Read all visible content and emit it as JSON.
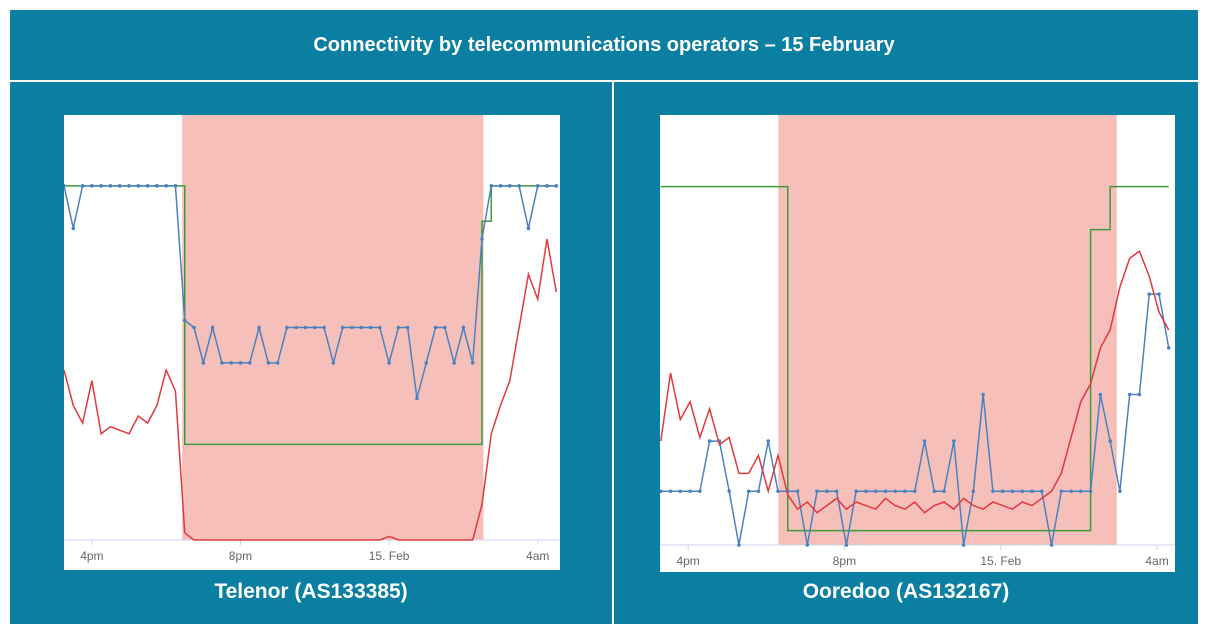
{
  "title": "Connectivity by telecommunications operators – 15 February",
  "chart_data": [
    {
      "type": "line",
      "title": "Telenor (AS133385)",
      "x": [
        15.25,
        15.5,
        15.75,
        16,
        16.25,
        16.5,
        16.75,
        17,
        17.25,
        17.5,
        17.75,
        18,
        18.25,
        18.5,
        18.75,
        19,
        19.25,
        19.5,
        19.75,
        20,
        20.25,
        20.5,
        20.75,
        21,
        21.25,
        21.5,
        21.75,
        22,
        22.25,
        22.5,
        22.75,
        23,
        23.25,
        23.5,
        23.75,
        24,
        24.25,
        24.5,
        24.75,
        25,
        25.25,
        25.5,
        25.75,
        26,
        26.25,
        26.5,
        26.75,
        27,
        27.25,
        27.5,
        27.75,
        28,
        28.25,
        28.5
      ],
      "xlim": [
        15.25,
        28.6
      ],
      "ylim": [
        0,
        120
      ],
      "xticks": [
        {
          "value": 16,
          "label": "4pm"
        },
        {
          "value": 20,
          "label": "8pm"
        },
        {
          "value": 24,
          "label": "15. Feb"
        },
        {
          "value": 28,
          "label": "4am"
        }
      ],
      "shade": [
        18.43,
        26.54
      ],
      "shade_color": "#f7bfba",
      "series": [
        {
          "color": "#3d9b3d",
          "step": true,
          "values": [
            100,
            100,
            100,
            100,
            100,
            100,
            100,
            100,
            100,
            100,
            100,
            100,
            100,
            27,
            27,
            27,
            27,
            27,
            27,
            27,
            27,
            27,
            27,
            27,
            27,
            27,
            27,
            27,
            27,
            27,
            27,
            27,
            27,
            27,
            27,
            27,
            27,
            27,
            27,
            27,
            27,
            27,
            27,
            27,
            27,
            90,
            100,
            100,
            100,
            100,
            100,
            100,
            100,
            100
          ]
        },
        {
          "color": "#4a82c0",
          "markers": true,
          "values": [
            100,
            88,
            100,
            100,
            100,
            100,
            100,
            100,
            100,
            100,
            100,
            100,
            100,
            62,
            60,
            50,
            60,
            50,
            50,
            50,
            50,
            60,
            50,
            50,
            60,
            60,
            60,
            60,
            60,
            50,
            60,
            60,
            60,
            60,
            60,
            50,
            60,
            60,
            40,
            50,
            60,
            60,
            50,
            60,
            50,
            85,
            100,
            100,
            100,
            100,
            88,
            100,
            100,
            100
          ]
        },
        {
          "color": "#e2393e",
          "values": [
            48,
            38,
            33,
            45,
            30,
            32,
            31,
            30,
            35,
            33,
            38,
            48,
            42,
            2,
            0,
            0,
            0,
            0,
            0,
            0,
            0,
            0,
            0,
            0,
            0,
            0,
            0,
            0,
            0,
            0,
            0,
            0,
            0,
            0,
            0,
            1,
            0,
            0,
            0,
            0,
            0,
            0,
            0,
            0,
            0,
            10,
            30,
            38,
            45,
            60,
            75,
            68,
            85,
            70
          ]
        }
      ]
    },
    {
      "type": "line",
      "title": "Ooredoo (AS132167)",
      "x": [
        15.3,
        15.55,
        15.8,
        16.05,
        16.3,
        16.55,
        16.8,
        17.05,
        17.3,
        17.55,
        17.8,
        18.05,
        18.3,
        18.55,
        18.8,
        19.05,
        19.3,
        19.55,
        19.8,
        20.05,
        20.3,
        20.55,
        20.8,
        21.05,
        21.3,
        21.55,
        21.8,
        22.05,
        22.3,
        22.55,
        22.8,
        23.05,
        23.3,
        23.55,
        23.8,
        24.05,
        24.3,
        24.55,
        24.8,
        25.05,
        25.3,
        25.55,
        25.8,
        26.05,
        26.3,
        26.55,
        26.8,
        27.05,
        27.3,
        27.55,
        27.8,
        28.05,
        28.3
      ],
      "xlim": [
        15.28,
        28.46
      ],
      "ylim": [
        0,
        120
      ],
      "xticks": [
        {
          "value": 16,
          "label": "4pm"
        },
        {
          "value": 20,
          "label": "8pm"
        },
        {
          "value": 24,
          "label": "15. Feb"
        },
        {
          "value": 28,
          "label": "4am"
        }
      ],
      "shade": [
        18.31,
        26.97
      ],
      "shade_color": "#f7bfba",
      "series": [
        {
          "color": "#3d9b3d",
          "step": true,
          "values": [
            100,
            100,
            100,
            100,
            100,
            100,
            100,
            100,
            100,
            100,
            100,
            100,
            100,
            4,
            4,
            4,
            4,
            4,
            4,
            4,
            4,
            4,
            4,
            4,
            4,
            4,
            4,
            4,
            4,
            4,
            4,
            4,
            4,
            4,
            4,
            4,
            4,
            4,
            4,
            4,
            4,
            4,
            4,
            4,
            88,
            88,
            100,
            100,
            100,
            100,
            100,
            100,
            100
          ]
        },
        {
          "color": "#4a82c0",
          "markers": true,
          "values": [
            15,
            15,
            15,
            15,
            15,
            29,
            29,
            15,
            0,
            15,
            15,
            29,
            15,
            15,
            15,
            0,
            15,
            15,
            15,
            0,
            15,
            15,
            15,
            15,
            15,
            15,
            15,
            29,
            15,
            15,
            29,
            0,
            15,
            42,
            15,
            15,
            15,
            15,
            15,
            15,
            0,
            15,
            15,
            15,
            15,
            42,
            29,
            15,
            42,
            42,
            70,
            70,
            55
          ]
        },
        {
          "color": "#e2393e",
          "values": [
            29,
            48,
            35,
            40,
            30,
            38,
            28,
            30,
            20,
            20,
            25,
            15,
            25,
            14,
            10,
            12,
            9,
            11,
            13,
            10,
            12,
            11,
            10,
            13,
            11,
            10,
            12,
            9,
            11,
            12,
            10,
            13,
            11,
            10,
            12,
            11,
            10,
            12,
            11,
            13,
            15,
            20,
            30,
            40,
            45,
            55,
            60,
            72,
            80,
            82,
            75,
            65,
            60
          ]
        }
      ]
    }
  ]
}
